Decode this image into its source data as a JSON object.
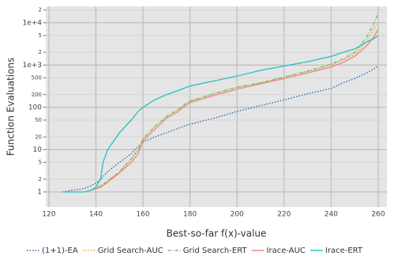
{
  "chart_data": {
    "type": "line",
    "xlabel": "Best-so-far f(x)-value",
    "ylabel": "Function Evaluations",
    "yscale": "log",
    "grid": true,
    "legend": "bottom",
    "x": [
      126,
      130,
      135,
      138,
      140,
      142,
      143,
      145,
      150,
      155,
      158,
      160,
      165,
      170,
      175,
      178,
      180,
      190,
      200,
      210,
      220,
      230,
      240,
      245,
      250,
      255,
      258,
      260
    ],
    "series": [
      {
        "name": "(1+1)-EA",
        "color": "#2a6db5",
        "style": "dotted",
        "values": [
          1,
          1.1,
          1.2,
          1.4,
          1.6,
          2,
          2.3,
          3,
          5,
          8,
          12,
          15,
          20,
          25,
          32,
          37,
          40,
          55,
          80,
          110,
          150,
          210,
          280,
          380,
          480,
          650,
          800,
          950
        ]
      },
      {
        "name": "Grid Search-AUC",
        "color": "#f0a13a",
        "style": "dotted",
        "values": [
          null,
          null,
          null,
          1.1,
          1.2,
          1.4,
          1.5,
          1.8,
          3,
          6,
          10,
          18,
          35,
          60,
          90,
          120,
          140,
          210,
          300,
          380,
          520,
          700,
          1000,
          1300,
          1800,
          3500,
          7000,
          10000
        ]
      },
      {
        "name": "Grid Search-ERT",
        "color": "#6cbf6c",
        "style": "dashdot",
        "values": [
          null,
          null,
          null,
          1.1,
          1.2,
          1.4,
          1.5,
          1.8,
          3,
          6,
          10,
          18,
          35,
          60,
          90,
          120,
          140,
          210,
          300,
          380,
          520,
          720,
          1050,
          1400,
          2000,
          4500,
          9000,
          17000
        ]
      },
      {
        "name": "Irace-AUC",
        "color": "#f08a80",
        "style": "solid",
        "values": [
          null,
          null,
          null,
          1.1,
          1.2,
          1.3,
          1.4,
          1.7,
          2.8,
          5,
          8,
          16,
          30,
          55,
          80,
          110,
          130,
          190,
          270,
          360,
          480,
          650,
          900,
          1150,
          1600,
          2800,
          4500,
          7000
        ]
      },
      {
        "name": "Irace-ERT",
        "color": "#2ec4c4",
        "style": "solid",
        "values": [
          1,
          1,
          1,
          1.1,
          1.3,
          2,
          5,
          10,
          25,
          50,
          80,
          100,
          150,
          200,
          250,
          290,
          320,
          420,
          550,
          750,
          950,
          1200,
          1600,
          2000,
          2400,
          3500,
          4200,
          5000
        ]
      }
    ],
    "xlim": [
      118.7,
      263.7
    ],
    "xticks": [
      120,
      140,
      160,
      180,
      200,
      220,
      240,
      260
    ],
    "ylim": [
      0.44,
      24500
    ],
    "yticks": [
      1,
      2,
      5,
      10,
      20,
      50,
      100,
      200,
      500,
      {
        "value": 1000,
        "label": "1e+3"
      },
      {
        "value": 2000,
        "label": "2"
      },
      {
        "value": 5000,
        "label": "5"
      },
      {
        "value": 10000,
        "label": "1e+4"
      },
      {
        "value": 20000,
        "label": "2"
      }
    ]
  }
}
